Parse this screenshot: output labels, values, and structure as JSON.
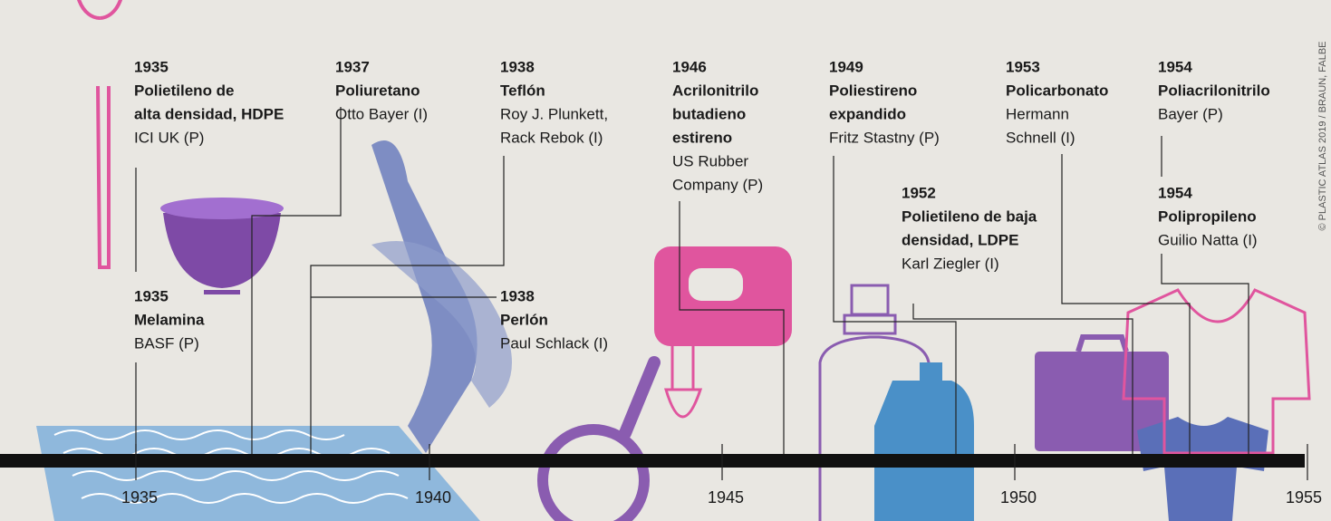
{
  "events": [
    {
      "year": "1935",
      "name": [
        "Polietileno de",
        "alta densidad, HDPE"
      ],
      "details": [
        "ICI UK (P)"
      ]
    },
    {
      "year": "1935",
      "name": [
        "Melamina"
      ],
      "details": [
        "BASF (P)"
      ]
    },
    {
      "year": "1937",
      "name": [
        "Poliuretano"
      ],
      "details": [
        "Otto Bayer (I)"
      ]
    },
    {
      "year": "1938",
      "name": [
        "Teflón"
      ],
      "details": [
        "Roy J. Plunkett,",
        "Rack Rebok (I)"
      ]
    },
    {
      "year": "1938",
      "name": [
        "Perlón"
      ],
      "details": [
        "Paul Schlack (I)"
      ]
    },
    {
      "year": "1946",
      "name": [
        "Acrilonitrilo",
        "butadieno",
        "estireno"
      ],
      "details": [
        "US Rubber",
        "Company (P)"
      ]
    },
    {
      "year": "1949",
      "name": [
        "Poliestireno",
        "expandido"
      ],
      "details": [
        "Fritz Stastny (P)"
      ]
    },
    {
      "year": "1952",
      "name": [
        "Polietileno de baja",
        "densidad, LDPE"
      ],
      "details": [
        "Karl Ziegler (I)"
      ]
    },
    {
      "year": "1953",
      "name": [
        "Policarbonato"
      ],
      "details": [
        "Hermann",
        "Schnell (I)"
      ]
    },
    {
      "year": "1954",
      "name": [
        "Poliacrilonitrilo"
      ],
      "details": [
        "Bayer (P)"
      ]
    },
    {
      "year": "1954",
      "name": [
        "Polipropileno"
      ],
      "details": [
        "Guilio Natta (I)"
      ]
    }
  ],
  "axis": {
    "ticks": [
      "1935",
      "1940",
      "1945",
      "1950",
      "1955"
    ]
  },
  "credit": "© PLASTIC ATLAS 2019 / BRAUN, FALBE"
}
